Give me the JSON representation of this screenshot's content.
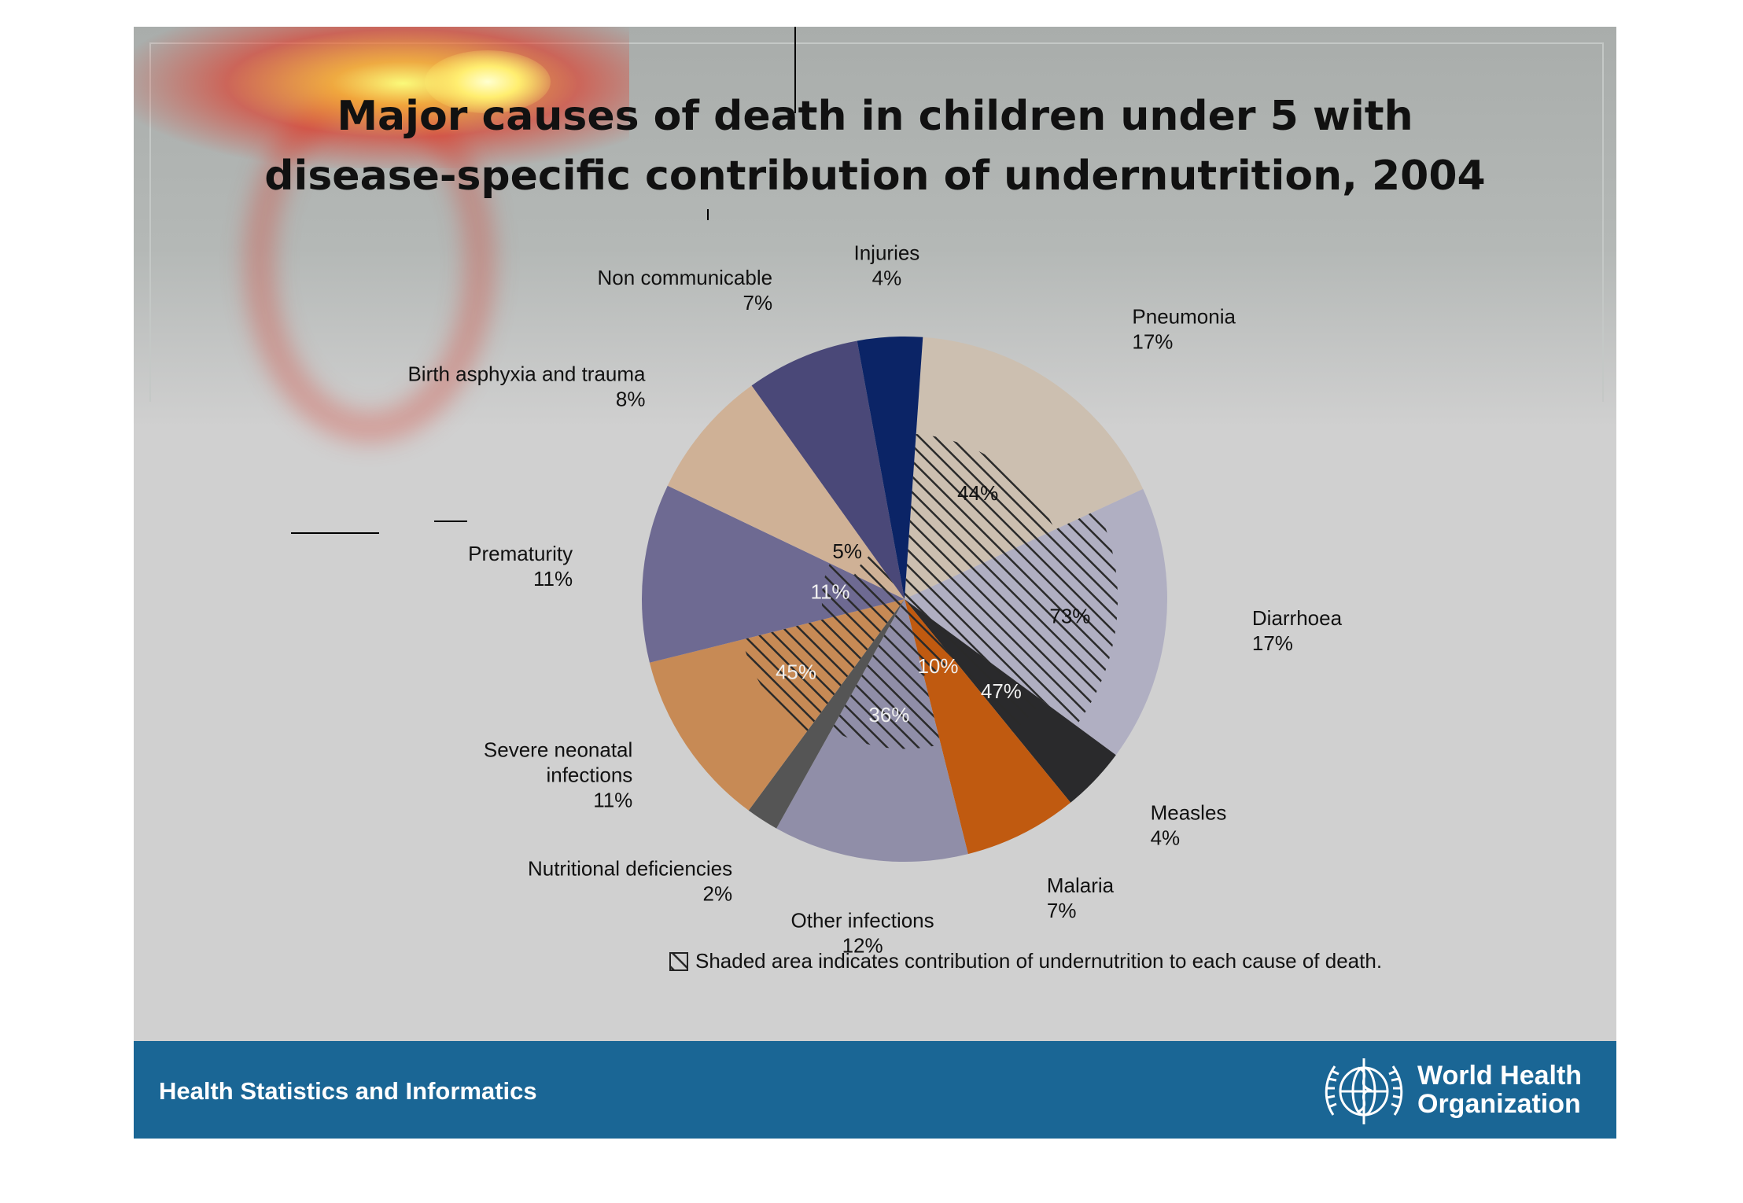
{
  "title_lines": [
    "Major causes of death in children under 5 with",
    "disease-specific contribution of undernutrition, 2004"
  ],
  "chart_data": {
    "type": "pie",
    "title": "Major causes of death in children under 5 with disease-specific contribution of undernutrition, 2004",
    "series": [
      {
        "slices": [
          {
            "name": "Pneumonia",
            "value": 17,
            "label": "17%",
            "color": "#ccbfb0",
            "undernutrition_share": "44%"
          },
          {
            "name": "Diarrhoea",
            "value": 17,
            "label": "17%",
            "color": "#b0afc2",
            "undernutrition_share": "73%"
          },
          {
            "name": "Measles",
            "value": 4,
            "label": "4%",
            "color": "#2a2a2c",
            "undernutrition_share": "47%"
          },
          {
            "name": "Malaria",
            "value": 7,
            "label": "7%",
            "color": "#c05a10",
            "undernutrition_share": "10%"
          },
          {
            "name": "Other infections",
            "value": 12,
            "label": "12%",
            "color": "#908ea8",
            "undernutrition_share": "36%"
          },
          {
            "name": "Nutritional deficiencies",
            "value": 2,
            "label": "2%",
            "color": "#555555",
            "undernutrition_share": ""
          },
          {
            "name": "Severe neonatal infections",
            "value": 11,
            "label": "11%",
            "color": "#c78a55",
            "undernutrition_share": "45%"
          },
          {
            "name": "Prematurity",
            "value": 11,
            "label": "11%",
            "color": "#6e6a92",
            "undernutrition_share": "11%"
          },
          {
            "name": "Birth asphyxia and trauma",
            "value": 8,
            "label": "8%",
            "color": "#cfb196",
            "undernutrition_share": "5%"
          },
          {
            "name": "Non communicable",
            "value": 7,
            "label": "7%",
            "color": "#4a4878",
            "undernutrition_share": ""
          },
          {
            "name": "Injuries",
            "value": 4,
            "label": "4%",
            "color": "#0b2466",
            "undernutrition_share": ""
          }
        ]
      }
    ],
    "note": "Shaded area indicates contribution of undernutrition to each cause of death.",
    "legend_position": "bottom"
  },
  "footer": {
    "left_text": "Health Statistics and Informatics",
    "org_line1": "World Health",
    "org_line2": "Organization",
    "logo_icon": "who-emblem-icon"
  },
  "colors": {
    "footer_bg": "#1a6695",
    "slide_bg": "#d0d0d0",
    "hatch": "#2a2a2a"
  }
}
